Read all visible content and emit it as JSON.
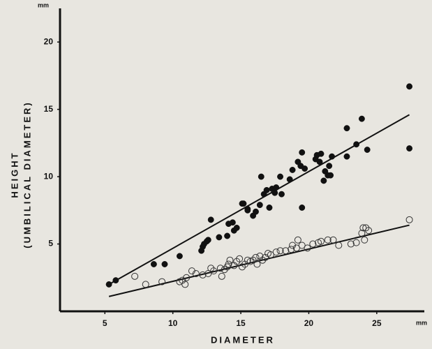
{
  "chart_data": {
    "type": "scatter",
    "x_label": "DIAMETER",
    "y_label": [
      "HEIGHT",
      "(UMBILICAL  DIAMETER)"
    ],
    "x_unit": "mm",
    "y_unit": "mm",
    "xlim": [
      1.7,
      28.5
    ],
    "ylim": [
      0,
      22.5
    ],
    "xticks": [
      5,
      10,
      15,
      20,
      25
    ],
    "yticks": [
      5,
      10,
      15,
      20
    ],
    "grid": false,
    "series": [
      {
        "marker": "filled",
        "color": "#111111",
        "x": [
          5.3,
          5.8,
          8.6,
          9.4,
          10.5,
          12.1,
          12.2,
          12.3,
          12.5,
          12.6,
          12.8,
          13.4,
          14.0,
          14.1,
          14.4,
          14.5,
          14.7,
          15.1,
          15.2,
          15.5,
          15.5,
          15.9,
          16.1,
          16.4,
          16.5,
          16.7,
          16.9,
          17.1,
          17.3,
          17.5,
          17.6,
          17.9,
          18.0,
          18.6,
          18.8,
          19.2,
          19.4,
          19.5,
          19.7,
          19.5,
          20.5,
          20.6,
          20.8,
          20.9,
          21.1,
          21.2,
          21.4,
          21.5,
          21.6,
          21.7,
          22.8,
          22.8,
          23.5,
          23.9,
          24.3,
          27.4,
          27.4
        ],
        "values": [
          2.0,
          2.3,
          3.5,
          3.5,
          4.1,
          4.5,
          4.8,
          5.0,
          5.2,
          5.3,
          6.8,
          5.5,
          5.6,
          6.5,
          6.6,
          6.0,
          6.2,
          8.0,
          8.0,
          7.6,
          7.5,
          7.1,
          7.4,
          7.9,
          10.0,
          8.7,
          9.0,
          7.7,
          9.1,
          8.8,
          9.2,
          10.0,
          8.7,
          9.8,
          10.5,
          11.1,
          10.8,
          11.8,
          10.6,
          7.7,
          11.3,
          11.6,
          11.1,
          11.7,
          9.7,
          10.4,
          10.1,
          10.8,
          10.1,
          11.5,
          13.6,
          11.5,
          12.4,
          14.3,
          12.0,
          16.7,
          12.1
        ]
      },
      {
        "marker": "open",
        "color": "#333333",
        "x": [
          7.2,
          8.0,
          9.2,
          10.5,
          10.7,
          10.9,
          11.0,
          11.4,
          11.7,
          12.2,
          12.6,
          12.8,
          13.0,
          13.5,
          13.6,
          13.8,
          14.0,
          14.1,
          14.2,
          14.5,
          14.7,
          14.9,
          15.1,
          15.3,
          15.5,
          15.7,
          15.9,
          16.1,
          16.2,
          16.4,
          16.6,
          16.8,
          17.0,
          17.2,
          17.6,
          17.9,
          18.3,
          18.7,
          18.8,
          19.1,
          19.2,
          19.5,
          19.9,
          20.3,
          20.7,
          20.9,
          21.4,
          21.8,
          22.2,
          23.1,
          23.5,
          23.9,
          24.0,
          24.1,
          24.2,
          24.4,
          27.4
        ],
        "values": [
          2.6,
          2.0,
          2.2,
          2.2,
          2.3,
          2.0,
          2.5,
          3.0,
          2.8,
          2.7,
          2.8,
          3.2,
          3.0,
          3.2,
          2.6,
          3.1,
          3.3,
          3.5,
          3.8,
          3.4,
          3.7,
          3.9,
          3.3,
          3.5,
          3.8,
          3.7,
          3.8,
          4.0,
          3.5,
          4.1,
          3.8,
          4.0,
          4.3,
          4.2,
          4.4,
          4.5,
          4.5,
          4.6,
          4.9,
          4.7,
          5.3,
          4.9,
          4.7,
          5.0,
          5.1,
          5.2,
          5.3,
          5.3,
          4.9,
          5.0,
          5.1,
          5.8,
          6.2,
          5.3,
          6.2,
          6.0,
          6.8
        ]
      }
    ],
    "lines": [
      {
        "color": "#111111",
        "x": [
          5.3,
          27.4
        ],
        "values": [
          2.0,
          14.6
        ]
      },
      {
        "color": "#111111",
        "x": [
          5.3,
          27.4
        ],
        "values": [
          1.1,
          6.4
        ]
      }
    ]
  }
}
